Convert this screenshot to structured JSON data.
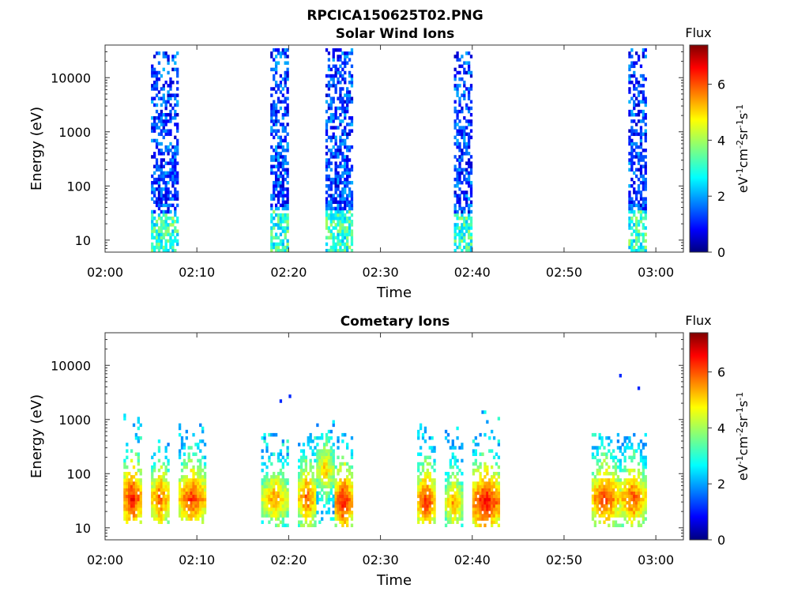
{
  "figure": {
    "title": "RPCICA150625T02.PNG"
  },
  "colorbar": {
    "label": "Flux",
    "ticks": [
      0,
      2,
      4,
      6
    ],
    "range": [
      0,
      7.4
    ],
    "colormap": "jet"
  },
  "chart_data": [
    {
      "type": "heatmap",
      "title": "Solar Wind Ions",
      "xlabel": "Time",
      "ylabel": "Energy (eV)",
      "x_tick_labels": [
        "02:00",
        "02:10",
        "02:20",
        "02:30",
        "02:40",
        "02:50",
        "03:00"
      ],
      "xlim": [
        "02:00",
        "03:03"
      ],
      "y_scale": "log",
      "y_tick_labels": [
        "10",
        "100",
        "1000",
        "10000"
      ],
      "ylim": [
        6,
        40000
      ],
      "bursts": [
        {
          "start": "02:05",
          "end": "02:08",
          "emin": 6,
          "emax": 30000,
          "level": "low"
        },
        {
          "start": "02:18",
          "end": "02:20",
          "emin": 6,
          "emax": 35000,
          "level": "low"
        },
        {
          "start": "02:24",
          "end": "02:27",
          "emin": 6,
          "emax": 35000,
          "level": "low"
        },
        {
          "start": "02:38",
          "end": "02:40",
          "emin": 6,
          "emax": 30000,
          "level": "low"
        },
        {
          "start": "02:57",
          "end": "02:59",
          "emin": 6,
          "emax": 35000,
          "level": "low"
        }
      ]
    },
    {
      "type": "heatmap",
      "title": "Cometary Ions",
      "xlabel": "Time",
      "ylabel": "Energy (eV)",
      "x_tick_labels": [
        "02:00",
        "02:10",
        "02:20",
        "02:30",
        "02:40",
        "02:50",
        "03:00"
      ],
      "xlim": [
        "02:00",
        "03:03"
      ],
      "y_scale": "log",
      "y_tick_labels": [
        "10",
        "100",
        "1000",
        "10000"
      ],
      "ylim": [
        6,
        40000
      ],
      "bursts": [
        {
          "start": "02:02",
          "end": "02:04",
          "emin": 12,
          "emax": 1200,
          "peak_energy": 35,
          "peak_flux": 6.5
        },
        {
          "start": "02:05",
          "end": "02:07",
          "emin": 12,
          "emax": 600,
          "peak_energy": 35,
          "peak_flux": 6.0
        },
        {
          "start": "02:08",
          "end": "02:11",
          "emin": 12,
          "emax": 900,
          "peak_energy": 35,
          "peak_flux": 6.2
        },
        {
          "start": "02:17",
          "end": "02:20",
          "emin": 10,
          "emax": 600,
          "peak_energy": 35,
          "peak_flux": 5.5
        },
        {
          "start": "02:21",
          "end": "02:23",
          "emin": 10,
          "emax": 600,
          "peak_energy": 35,
          "peak_flux": 6.0
        },
        {
          "start": "02:23",
          "end": "02:25",
          "emin": 10,
          "emax": 1000,
          "peak_energy": 120,
          "peak_flux": 5.2
        },
        {
          "start": "02:25",
          "end": "02:27",
          "emin": 10,
          "emax": 600,
          "peak_energy": 30,
          "peak_flux": 6.5
        },
        {
          "start": "02:34",
          "end": "02:36",
          "emin": 12,
          "emax": 1000,
          "peak_energy": 30,
          "peak_flux": 6.3
        },
        {
          "start": "02:37",
          "end": "02:39",
          "emin": 10,
          "emax": 700,
          "peak_energy": 30,
          "peak_flux": 5.5
        },
        {
          "start": "02:40",
          "end": "02:43",
          "emin": 10,
          "emax": 1800,
          "peak_energy": 30,
          "peak_flux": 6.6
        },
        {
          "start": "02:53",
          "end": "02:56",
          "emin": 10,
          "emax": 600,
          "peak_energy": 35,
          "peak_flux": 6.2
        },
        {
          "start": "02:56",
          "end": "02:59",
          "emin": 10,
          "emax": 600,
          "peak_energy": 35,
          "peak_flux": 6.0
        }
      ],
      "scattered_points": [
        {
          "time": "02:19",
          "energy": 2200
        },
        {
          "time": "02:20",
          "energy": 2700
        },
        {
          "time": "02:56",
          "energy": 6500
        },
        {
          "time": "02:58",
          "energy": 3800
        }
      ]
    }
  ]
}
